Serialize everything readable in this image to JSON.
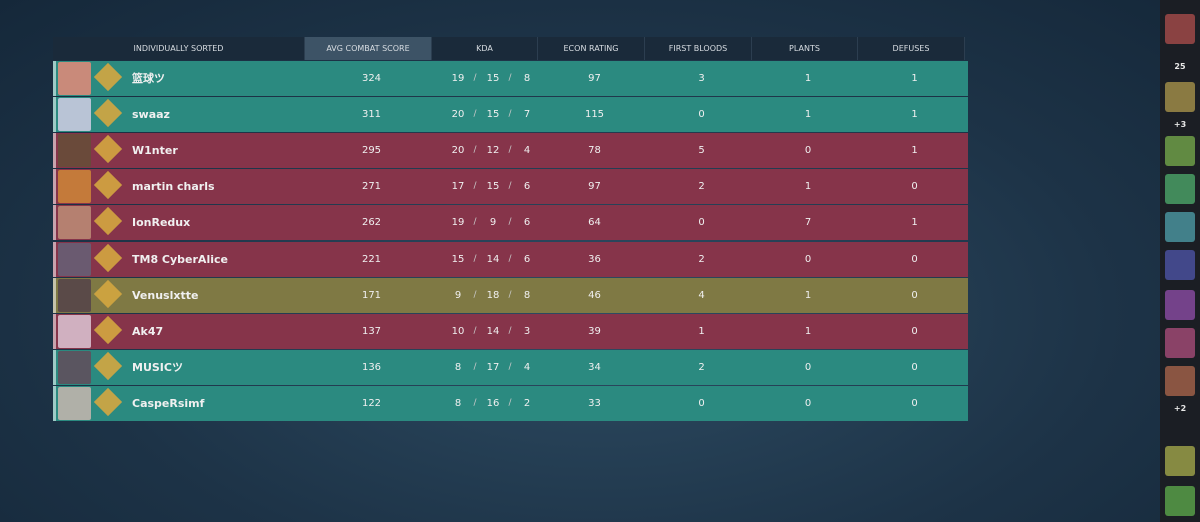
{
  "header": {
    "columns": [
      "INDIVIDUALLY SORTED",
      "AVG COMBAT SCORE",
      "KDA",
      "ECON RATING",
      "FIRST BLOODS",
      "PLANTS",
      "DEFUSES"
    ]
  },
  "table": {
    "rows": [
      {
        "name": "篮球ツ",
        "acs": "324",
        "k": "19",
        "d": "15",
        "a": "8",
        "econ": "97",
        "fb": "3",
        "plants": "1",
        "defuses": "1",
        "color": "#2b8a80"
      },
      {
        "name": "swaaz",
        "acs": "311",
        "k": "20",
        "d": "15",
        "a": "7",
        "econ": "115",
        "fb": "0",
        "plants": "1",
        "defuses": "1",
        "color": "#2b8a80"
      },
      {
        "name": "W1nter",
        "acs": "295",
        "k": "20",
        "d": "12",
        "a": "4",
        "econ": "78",
        "fb": "5",
        "plants": "0",
        "defuses": "1",
        "color": "#86344a"
      },
      {
        "name": "martin charls",
        "acs": "271",
        "k": "17",
        "d": "15",
        "a": "6",
        "econ": "97",
        "fb": "2",
        "plants": "1",
        "defuses": "0",
        "color": "#86344a"
      },
      {
        "name": "IonRedux",
        "acs": "262",
        "k": "19",
        "d": "9",
        "a": "6",
        "econ": "64",
        "fb": "0",
        "plants": "7",
        "defuses": "1",
        "color": "#86344a"
      },
      {
        "name": "TM8 CyberAlice",
        "acs": "221",
        "k": "15",
        "d": "14",
        "a": "6",
        "econ": "36",
        "fb": "2",
        "plants": "0",
        "defuses": "0",
        "color": "#86344a"
      },
      {
        "name": "Venuslxtte",
        "acs": "171",
        "k": "9",
        "d": "18",
        "a": "8",
        "econ": "46",
        "fb": "4",
        "plants": "1",
        "defuses": "0",
        "color": "#7f7944"
      },
      {
        "name": "Ak47",
        "acs": "137",
        "k": "10",
        "d": "14",
        "a": "3",
        "econ": "39",
        "fb": "1",
        "plants": "1",
        "defuses": "0",
        "color": "#86344a"
      },
      {
        "name": "MUSICツ",
        "acs": "136",
        "k": "8",
        "d": "17",
        "a": "4",
        "econ": "34",
        "fb": "2",
        "plants": "0",
        "defuses": "0",
        "color": "#2b8a80"
      },
      {
        "name": "CaspeRsimf",
        "acs": "122",
        "k": "8",
        "d": "16",
        "a": "2",
        "econ": "33",
        "fb": "0",
        "plants": "0",
        "defuses": "0",
        "color": "#2b8a80"
      }
    ]
  },
  "sidebar": {
    "count": "25",
    "group_a": "+3",
    "group_b": "+2"
  }
}
